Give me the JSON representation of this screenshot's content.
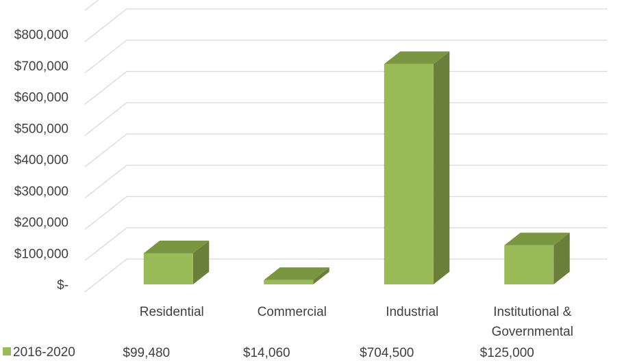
{
  "chart_data": {
    "type": "bar",
    "title": "",
    "xlabel": "",
    "ylabel": "",
    "categories": [
      "Residential",
      "Commercial",
      "Industrial",
      "Institutional & Governmental"
    ],
    "category_lines": [
      [
        "Residential"
      ],
      [
        "Commercial"
      ],
      [
        "Industrial"
      ],
      [
        "Institutional &",
        "Governmental"
      ]
    ],
    "series": [
      {
        "name": "2016-2020",
        "values": [
          99480,
          14060,
          704500,
          125000
        ],
        "value_labels": [
          "$99,480",
          "$14,060",
          "$704,500",
          "$125,000"
        ],
        "color": "#9bbb59",
        "side_color": "#6a7f3a",
        "top_color": "#7a9640"
      }
    ],
    "ylim": [
      0,
      800000
    ],
    "yticks": [
      0,
      100000,
      200000,
      300000,
      400000,
      500000,
      600000,
      700000,
      800000
    ],
    "ytick_labels": [
      "$-",
      "$100,000",
      "$200,000",
      "$300,000",
      "$400,000",
      "$500,000",
      "$600,000",
      "$700,000",
      "$800,000"
    ],
    "grid": true,
    "legend": "data-table-below",
    "three_d": true
  }
}
